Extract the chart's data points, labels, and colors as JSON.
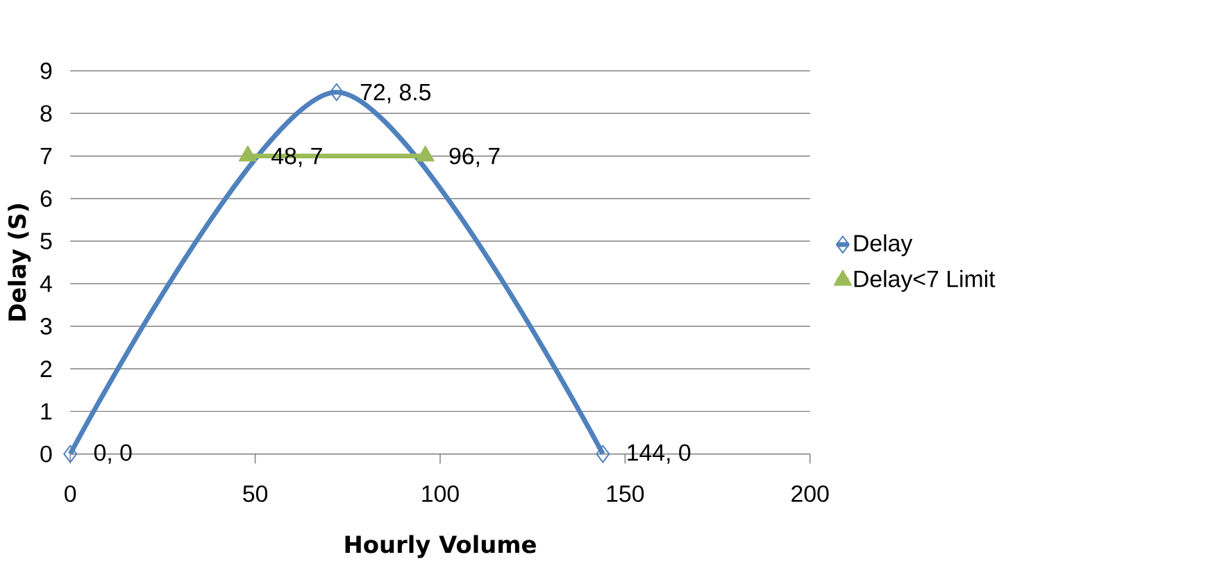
{
  "chart_data": {
    "type": "line",
    "xlabel": "Hourly Volume",
    "ylabel": "Delay (S)",
    "xlim": [
      0,
      200
    ],
    "xticks": [
      0,
      50,
      100,
      150,
      200
    ],
    "ylim": [
      0,
      9
    ],
    "yticks": [
      0,
      1,
      2,
      3,
      4,
      5,
      6,
      7,
      8,
      9
    ],
    "grid": "y",
    "legend": "right",
    "line_style": "solid",
    "series": [
      {
        "name": "Delay",
        "color": "#4f81bd",
        "marker": "diamond",
        "x": [
          0,
          72,
          144
        ],
        "values": [
          0,
          8.5,
          0
        ],
        "value_labels": [
          "0, 0",
          "72, 8.5",
          "144, 0"
        ]
      },
      {
        "name": "Delay<7 Limit",
        "color": "#9bbb59",
        "marker": "triangle",
        "x": [
          48,
          96
        ],
        "values": [
          7,
          7
        ],
        "value_labels": [
          "48, 7",
          "96, 7"
        ]
      }
    ]
  }
}
